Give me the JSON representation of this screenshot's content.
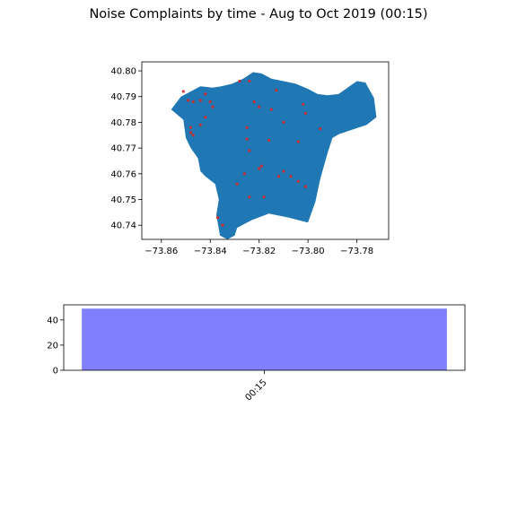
{
  "figure": {
    "title": "Noise Complaints by time - Aug to Oct 2019 (00:15)"
  },
  "chart_data": [
    {
      "type": "scatter",
      "subtype": "map",
      "region_color": "#1f77b4",
      "point_color": "#d62728",
      "xlim": [
        -73.868,
        -73.767
      ],
      "ylim": [
        40.7345,
        40.8035
      ],
      "x_ticks": [
        -73.86,
        -73.84,
        -73.82,
        -73.8,
        -73.78
      ],
      "x_tick_labels": [
        "−73.86",
        "−73.84",
        "−73.82",
        "−73.80",
        "−73.78"
      ],
      "y_ticks": [
        40.74,
        40.75,
        40.76,
        40.77,
        40.78,
        40.79,
        40.8
      ],
      "y_tick_labels": [
        "40.74",
        "40.75",
        "40.76",
        "40.77",
        "40.78",
        "40.79",
        "40.80"
      ],
      "region": [
        [
          -73.856,
          40.785
        ],
        [
          -73.852,
          40.79
        ],
        [
          -73.848,
          40.792
        ],
        [
          -73.844,
          40.794
        ],
        [
          -73.839,
          40.7935
        ],
        [
          -73.8355,
          40.794
        ],
        [
          -73.831,
          40.795
        ],
        [
          -73.8265,
          40.797
        ],
        [
          -73.8225,
          40.7995
        ],
        [
          -73.819,
          40.799
        ],
        [
          -73.815,
          40.797
        ],
        [
          -73.81,
          40.796
        ],
        [
          -73.805,
          40.795
        ],
        [
          -73.8,
          40.793
        ],
        [
          -73.796,
          40.791
        ],
        [
          -73.792,
          40.7905
        ],
        [
          -73.7875,
          40.791
        ],
        [
          -73.783,
          40.794
        ],
        [
          -73.78,
          40.796
        ],
        [
          -73.7765,
          40.7955
        ],
        [
          -73.773,
          40.7895
        ],
        [
          -73.772,
          40.782
        ],
        [
          -73.776,
          40.779
        ],
        [
          -73.787,
          40.7755
        ],
        [
          -73.79,
          40.774
        ],
        [
          -73.792,
          40.768
        ],
        [
          -73.795,
          40.758
        ],
        [
          -73.797,
          40.749
        ],
        [
          -73.8,
          40.741
        ],
        [
          -73.808,
          40.743
        ],
        [
          -73.816,
          40.7445
        ],
        [
          -73.823,
          40.742
        ],
        [
          -73.829,
          40.739
        ],
        [
          -73.83,
          40.736
        ],
        [
          -73.833,
          40.7345
        ],
        [
          -73.836,
          40.736
        ],
        [
          -73.8375,
          40.744
        ],
        [
          -73.8365,
          40.75
        ],
        [
          -73.838,
          40.756
        ],
        [
          -73.842,
          40.759
        ],
        [
          -73.844,
          40.761
        ],
        [
          -73.845,
          40.766
        ],
        [
          -73.848,
          40.77
        ],
        [
          -73.85,
          40.774
        ],
        [
          -73.851,
          40.781
        ],
        [
          -73.856,
          40.785
        ]
      ],
      "points": [
        [
          -73.851,
          40.792
        ],
        [
          -73.849,
          40.7885
        ],
        [
          -73.847,
          40.788
        ],
        [
          -73.844,
          40.7885
        ],
        [
          -73.842,
          40.791
        ],
        [
          -73.84,
          40.788
        ],
        [
          -73.839,
          40.786
        ],
        [
          -73.842,
          40.782
        ],
        [
          -73.844,
          40.779
        ],
        [
          -73.848,
          40.778
        ],
        [
          -73.848,
          40.776
        ],
        [
          -73.847,
          40.775
        ],
        [
          -73.828,
          40.796
        ],
        [
          -73.824,
          40.796
        ],
        [
          -73.822,
          40.788
        ],
        [
          -73.82,
          40.786
        ],
        [
          -73.813,
          40.7925
        ],
        [
          -73.815,
          40.785
        ],
        [
          -73.81,
          40.78
        ],
        [
          -73.802,
          40.787
        ],
        [
          -73.801,
          40.7835
        ],
        [
          -73.795,
          40.7775
        ],
        [
          -73.825,
          40.778
        ],
        [
          -73.825,
          40.7735
        ],
        [
          -73.824,
          40.769
        ],
        [
          -73.819,
          40.763
        ],
        [
          -73.82,
          40.762
        ],
        [
          -73.826,
          40.76
        ],
        [
          -73.829,
          40.756
        ],
        [
          -73.824,
          40.751
        ],
        [
          -73.818,
          40.751
        ],
        [
          -73.812,
          40.759
        ],
        [
          -73.81,
          40.761
        ],
        [
          -73.807,
          40.759
        ],
        [
          -73.804,
          40.757
        ],
        [
          -73.801,
          40.755
        ],
        [
          -73.816,
          40.773
        ],
        [
          -73.804,
          40.7725
        ],
        [
          -73.835,
          40.74
        ],
        [
          -73.837,
          40.743
        ]
      ]
    },
    {
      "type": "bar",
      "categories": [
        "00:15"
      ],
      "values": [
        49
      ],
      "bar_color": "#8080ff",
      "ylim": [
        0,
        52
      ],
      "y_ticks": [
        0,
        20,
        40
      ],
      "y_tick_labels": [
        "0",
        "20",
        "40"
      ]
    }
  ]
}
